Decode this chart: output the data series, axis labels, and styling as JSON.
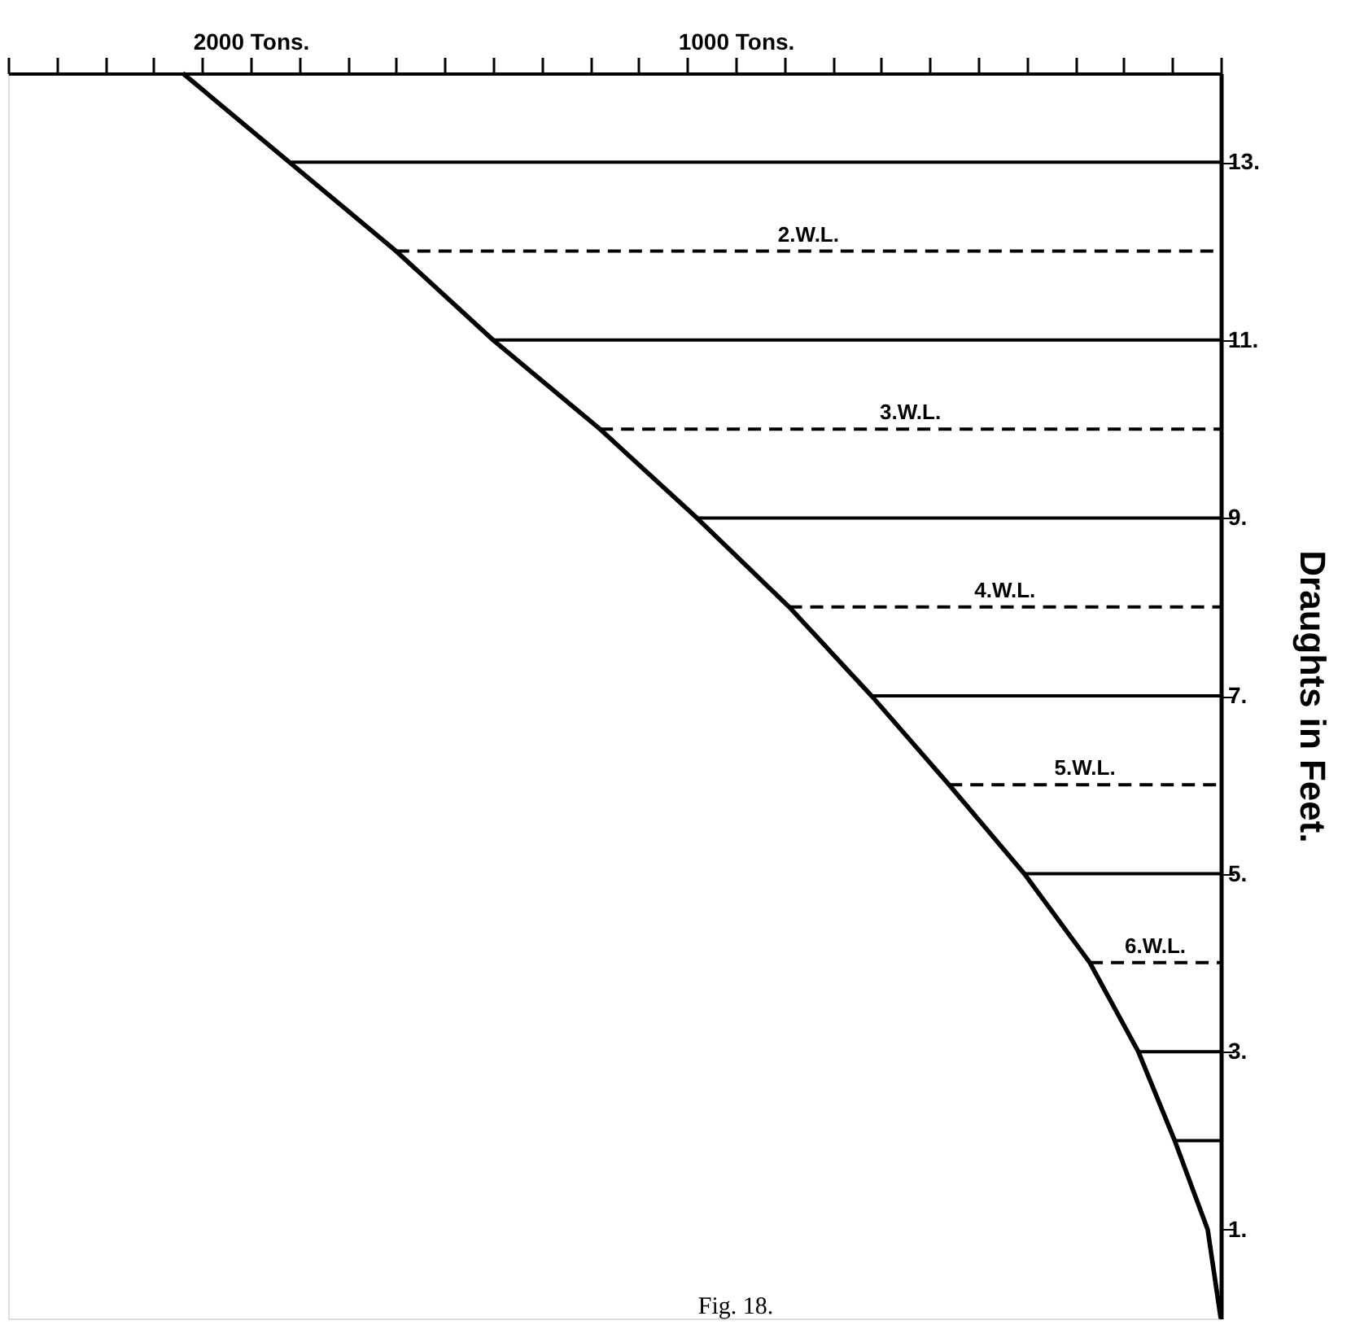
{
  "chart_data": {
    "type": "line",
    "ylabel": "Draughts in Feet.",
    "annotations": [
      "Fig. 18.",
      {
        "text": "2.W.L.",
        "x": 850,
        "y": 12
      },
      {
        "text": "3.W.L.",
        "x": 640,
        "y": 10
      },
      {
        "text": "4.W.L.",
        "x": 445,
        "y": 8
      },
      {
        "text": "5.W.L.",
        "x": 280,
        "y": 6
      },
      {
        "text": "6.W.L.",
        "x": 135,
        "y": 4
      }
    ],
    "series": [
      {
        "color": "#000000",
        "x": [
          0,
          27,
          95,
          170,
          270,
          405,
          560,
          720,
          890,
          1080,
          1280,
          1500,
          1700,
          1920,
          2140
        ],
        "values": [
          0,
          1,
          2,
          3,
          4,
          5,
          6,
          7,
          8,
          9,
          10,
          11,
          12,
          13,
          14
        ]
      },
      {
        "color": "#000000",
        "line_style": "solid",
        "x": [
          1920,
          0
        ],
        "values": [
          13,
          13
        ]
      },
      {
        "color": "#000000",
        "line_style": "dashed",
        "x": [
          1700,
          0
        ],
        "values": [
          12,
          12
        ]
      },
      {
        "color": "#000000",
        "line_style": "solid",
        "x": [
          1500,
          0
        ],
        "values": [
          11,
          11
        ]
      },
      {
        "color": "#000000",
        "line_style": "dashed",
        "x": [
          1280,
          0
        ],
        "values": [
          10,
          10
        ]
      },
      {
        "color": "#000000",
        "line_style": "solid",
        "x": [
          1080,
          0
        ],
        "values": [
          9,
          9
        ]
      },
      {
        "color": "#000000",
        "line_style": "dashed",
        "x": [
          890,
          0
        ],
        "values": [
          8,
          8
        ]
      },
      {
        "color": "#000000",
        "line_style": "solid",
        "x": [
          720,
          0
        ],
        "values": [
          7,
          7
        ]
      },
      {
        "color": "#000000",
        "line_style": "dashed",
        "x": [
          560,
          0
        ],
        "values": [
          6,
          6
        ]
      },
      {
        "color": "#000000",
        "line_style": "solid",
        "x": [
          405,
          0
        ],
        "values": [
          5,
          5
        ]
      },
      {
        "color": "#000000",
        "line_style": "dashed",
        "x": [
          270,
          0
        ],
        "values": [
          4,
          4
        ]
      },
      {
        "color": "#000000",
        "line_style": "solid",
        "x": [
          170,
          0
        ],
        "values": [
          3,
          3
        ]
      },
      {
        "color": "#000000",
        "line_style": "solid",
        "x": [
          95,
          0
        ],
        "values": [
          2,
          2
        ]
      }
    ],
    "xlim": [
      2500,
      0
    ],
    "xticks": [
      {
        "value": 2500,
        "label": null
      },
      {
        "value": 2400,
        "label": null
      },
      {
        "value": 2300,
        "label": null
      },
      {
        "value": 2200,
        "label": null
      },
      {
        "value": 2100,
        "label": null
      },
      {
        "value": 2000,
        "label": "2000 Tons."
      },
      {
        "value": 1900,
        "label": null
      },
      {
        "value": 1800,
        "label": null
      },
      {
        "value": 1700,
        "label": null
      },
      {
        "value": 1600,
        "label": null
      },
      {
        "value": 1500,
        "label": null
      },
      {
        "value": 1400,
        "label": null
      },
      {
        "value": 1300,
        "label": null
      },
      {
        "value": 1200,
        "label": null
      },
      {
        "value": 1100,
        "label": null
      },
      {
        "value": 1000,
        "label": "1000 Tons."
      },
      {
        "value": 900,
        "label": null
      },
      {
        "value": 800,
        "label": null
      },
      {
        "value": 700,
        "label": null
      },
      {
        "value": 600,
        "label": null
      },
      {
        "value": 500,
        "label": null
      },
      {
        "value": 400,
        "label": null
      },
      {
        "value": 300,
        "label": null
      },
      {
        "value": 200,
        "label": null
      },
      {
        "value": 100,
        "label": null
      },
      {
        "value": 0,
        "label": null
      }
    ],
    "ylim": [
      0,
      14
    ],
    "yticks": [
      {
        "value": 1,
        "label": "1."
      },
      {
        "value": 3,
        "label": "3."
      },
      {
        "value": 5,
        "label": "5."
      },
      {
        "value": 7,
        "label": "7."
      },
      {
        "value": 9,
        "label": "9."
      },
      {
        "value": 11,
        "label": "11."
      },
      {
        "value": 13,
        "label": "13."
      }
    ],
    "grid": false,
    "marker": "none"
  }
}
